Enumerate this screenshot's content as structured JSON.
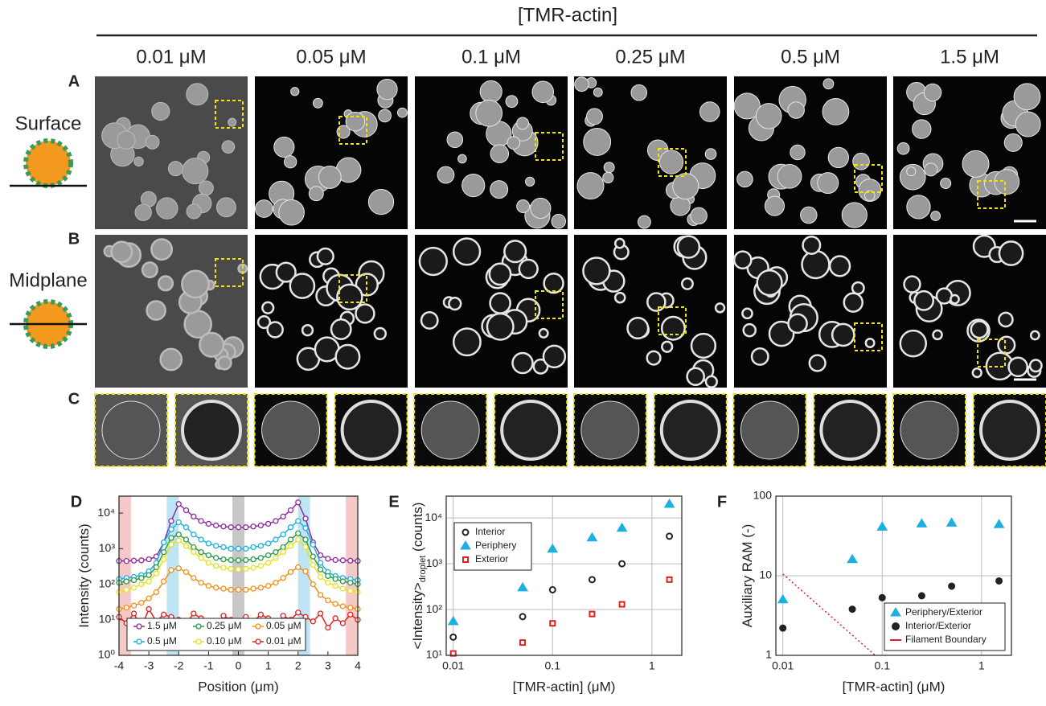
{
  "header": "[TMR-actin]",
  "concentrations": [
    "0.01 μM",
    "0.05 μM",
    "0.1 μM",
    "0.25 μM",
    "0.5 μM",
    "1.5 μM"
  ],
  "panel_labels": [
    "A",
    "B",
    "C",
    "D",
    "E",
    "F"
  ],
  "row_labels": [
    "Surface",
    "Midplane"
  ],
  "chart_data": [
    {
      "type": "line",
      "xlabel": "Position (μm)",
      "ylabel": "Intensity (counts)",
      "xlim": [
        -4,
        4
      ],
      "ylim": [
        1,
        30000
      ],
      "ylog": true,
      "xticks": [
        -4,
        -3,
        -2,
        -1,
        0,
        1,
        2,
        3,
        4
      ],
      "yticks": [
        {
          "value": 1,
          "label": "10⁰"
        },
        {
          "value": 10,
          "label": "10¹"
        },
        {
          "value": 100,
          "label": "10²"
        },
        {
          "value": 1000,
          "label": "10³"
        },
        {
          "value": 10000,
          "label": "10⁴"
        }
      ],
      "bands": [
        {
          "range": [
            -4,
            -3.6
          ],
          "color": "#f6c9c9"
        },
        {
          "range": [
            3.6,
            4
          ],
          "color": "#f6c9c9"
        },
        {
          "range": [
            -2.4,
            -2
          ],
          "color": "#bfe4f4"
        },
        {
          "range": [
            2,
            2.4
          ],
          "color": "#bfe4f4"
        },
        {
          "range": [
            -0.2,
            0.2
          ],
          "color": "#c8c8c8"
        }
      ],
      "x": [
        -4,
        -3.75,
        -3.5,
        -3.25,
        -3,
        -2.75,
        -2.5,
        -2.25,
        -2,
        -1.75,
        -1.5,
        -1.25,
        -1,
        -0.75,
        -0.5,
        -0.25,
        0,
        0.25,
        0.5,
        0.75,
        1,
        1.25,
        1.5,
        1.75,
        2,
        2.25,
        2.5,
        2.75,
        3,
        3.25,
        3.5,
        3.75,
        4
      ],
      "series": [
        {
          "name": "1.5 μM",
          "color": "#8e2c9e",
          "values": [
            450,
            450,
            460,
            470,
            500,
            600,
            1500,
            6000,
            18000,
            12000,
            8000,
            6000,
            5000,
            4500,
            4200,
            4000,
            4000,
            4000,
            4200,
            4500,
            5000,
            6000,
            8000,
            12000,
            20000,
            7000,
            1500,
            650,
            520,
            480,
            470,
            460,
            450
          ]
        },
        {
          "name": "0.5 μM",
          "color": "#1cb0e0",
          "values": [
            140,
            150,
            160,
            180,
            230,
            400,
            1500,
            3500,
            5500,
            4000,
            2500,
            1800,
            1400,
            1200,
            1100,
            1000,
            1000,
            1000,
            1100,
            1200,
            1400,
            1800,
            2500,
            4000,
            6000,
            3800,
            1300,
            400,
            220,
            170,
            150,
            140,
            130
          ]
        },
        {
          "name": "0.25 μM",
          "color": "#2a9a4a",
          "values": [
            110,
            120,
            130,
            150,
            180,
            300,
            800,
            2000,
            2500,
            1800,
            1100,
            800,
            650,
            550,
            500,
            480,
            470,
            480,
            500,
            550,
            650,
            800,
            1100,
            1800,
            2700,
            1800,
            600,
            260,
            170,
            140,
            120,
            110,
            100
          ]
        },
        {
          "name": "0.10 μM",
          "color": "#e8e020",
          "values": [
            60,
            70,
            80,
            100,
            120,
            200,
            500,
            1300,
            1700,
            1200,
            800,
            550,
            400,
            330,
            290,
            270,
            260,
            270,
            290,
            330,
            400,
            550,
            800,
            1200,
            1800,
            1100,
            350,
            160,
            110,
            90,
            75,
            65,
            60
          ]
        },
        {
          "name": "0.05 μM",
          "color": "#f0901a",
          "values": [
            20,
            22,
            25,
            30,
            40,
            60,
            120,
            250,
            280,
            220,
            150,
            110,
            90,
            80,
            75,
            70,
            70,
            70,
            75,
            80,
            90,
            110,
            150,
            220,
            300,
            230,
            100,
            50,
            35,
            28,
            24,
            22,
            20
          ]
        },
        {
          "name": "0.01 μM",
          "color": "#e02020",
          "values": [
            12,
            8,
            15,
            6,
            20,
            9,
            14,
            12,
            10,
            8,
            15,
            11,
            9,
            7,
            13,
            10,
            8,
            12,
            9,
            14,
            11,
            7,
            13,
            10,
            16,
            12,
            9,
            15,
            6,
            11,
            8,
            14,
            10
          ]
        }
      ],
      "legend": "lower left"
    },
    {
      "type": "scatter",
      "xlabel": "[TMR-actin] (μM)",
      "ylabel": "<Intensity>",
      "ylabel_sub": "droplet",
      "ylabel_suffix": " (counts)",
      "xlog": true,
      "ylog": true,
      "grid": true,
      "xlim": [
        0.0085,
        2
      ],
      "ylim": [
        10,
        30000
      ],
      "xticks": [
        0.01,
        0.1,
        1
      ],
      "yticks": [
        {
          "value": 10,
          "label": "10¹"
        },
        {
          "value": 100,
          "label": "10²"
        },
        {
          "value": 1000,
          "label": "10³"
        },
        {
          "value": 10000,
          "label": "10⁴"
        }
      ],
      "x": [
        0.01,
        0.05,
        0.1,
        0.25,
        0.5,
        1.5
      ],
      "series": [
        {
          "name": "Interior",
          "color": "#222222",
          "marker": "open-circle",
          "values": [
            25,
            70,
            270,
            450,
            1000,
            4000
          ]
        },
        {
          "name": "Periphery",
          "color": "#1cb0e0",
          "marker": "triangle",
          "values": [
            55,
            300,
            2100,
            3700,
            6000,
            20000
          ]
        },
        {
          "name": "Exterior",
          "color": "#e02020",
          "marker": "square",
          "values": [
            11,
            19,
            50,
            80,
            130,
            450
          ]
        }
      ],
      "legend": "upper left"
    },
    {
      "type": "scatter",
      "xlabel": "[TMR-actin] (μM)",
      "ylabel": "Auxiliary RAM (-)",
      "xlog": true,
      "ylog": true,
      "grid": true,
      "xlim": [
        0.0085,
        2
      ],
      "ylim": [
        1,
        100
      ],
      "xticks": [
        0.01,
        0.1,
        1
      ],
      "yticks": [
        1,
        10,
        100
      ],
      "x": [
        0.01,
        0.05,
        0.1,
        0.25,
        0.5,
        1.5
      ],
      "series": [
        {
          "name": "Periphery/Exterior",
          "color": "#1cb0e0",
          "marker": "triangle",
          "values": [
            5,
            16,
            41,
            45,
            46,
            44
          ]
        },
        {
          "name": "Interior/Exterior",
          "color": "#222222",
          "marker": "dot",
          "values": [
            2.2,
            3.8,
            5.3,
            5.6,
            7.4,
            8.6
          ]
        },
        {
          "name": "Filament Boundary",
          "color": "#e02020",
          "marker": "dotted-line",
          "x": [
            0.01,
            0.085
          ],
          "values": [
            10.5,
            1
          ]
        }
      ],
      "legend": "lower right"
    }
  ]
}
